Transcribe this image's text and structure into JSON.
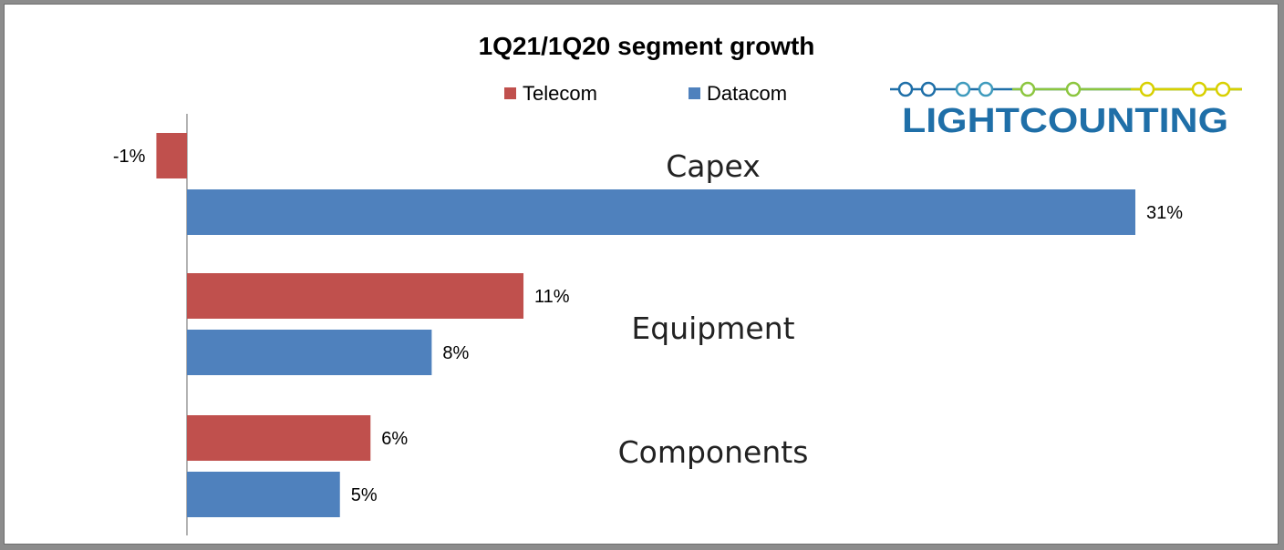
{
  "chart_data": {
    "type": "bar",
    "orientation": "horizontal",
    "title": "1Q21/1Q20 segment growth",
    "categories": [
      "Capex",
      "Equipment",
      "Components"
    ],
    "series": [
      {
        "name": "Telecom",
        "color": "#c0504d",
        "values": [
          -1,
          11,
          6
        ],
        "labels": [
          "-1%",
          "11%",
          "6%"
        ]
      },
      {
        "name": "Datacom",
        "color": "#4f81bd",
        "values": [
          31,
          8,
          5
        ],
        "labels": [
          "31%",
          "8%",
          "5%"
        ]
      }
    ],
    "xlim": [
      -1,
      31
    ],
    "legend_position": "top",
    "grid": false
  },
  "logo": {
    "text": "LIGHTCOUNTING",
    "colors": [
      "#1f6fa8",
      "#3f9bbd",
      "#8cc63f",
      "#d8d000"
    ]
  }
}
